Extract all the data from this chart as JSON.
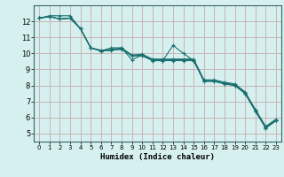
{
  "xlabel": "Humidex (Indice chaleur)",
  "background_color": "#d6f0ef",
  "grid_color": "#c8b4b4",
  "line_color": "#1a7070",
  "xlim": [
    -0.5,
    23.5
  ],
  "ylim": [
    4.5,
    13.0
  ],
  "x_ticks": [
    0,
    1,
    2,
    3,
    4,
    5,
    6,
    7,
    8,
    9,
    10,
    11,
    12,
    13,
    14,
    15,
    16,
    17,
    18,
    19,
    20,
    21,
    22,
    23
  ],
  "y_ticks": [
    5,
    6,
    7,
    8,
    9,
    10,
    11,
    12
  ],
  "series": [
    [
      12.2,
      12.35,
      12.35,
      12.35,
      11.55,
      10.35,
      10.15,
      10.35,
      10.35,
      9.6,
      9.9,
      9.55,
      9.55,
      10.5,
      10.0,
      9.55,
      8.3,
      8.3,
      8.1,
      8.0,
      7.5,
      6.4,
      5.35,
      5.8
    ],
    [
      12.2,
      12.3,
      12.15,
      12.2,
      11.55,
      10.35,
      10.15,
      10.2,
      10.25,
      9.85,
      9.85,
      9.55,
      9.55,
      9.55,
      9.55,
      9.55,
      8.25,
      8.25,
      8.1,
      8.0,
      7.5,
      6.4,
      5.35,
      5.8
    ],
    [
      12.2,
      12.3,
      12.15,
      12.2,
      11.55,
      10.35,
      10.15,
      10.2,
      10.3,
      9.85,
      9.9,
      9.6,
      9.6,
      9.6,
      9.6,
      9.6,
      8.3,
      8.3,
      8.15,
      8.05,
      7.55,
      6.45,
      5.4,
      5.85
    ],
    [
      12.2,
      12.3,
      12.15,
      12.2,
      11.55,
      10.35,
      10.2,
      10.25,
      10.35,
      9.9,
      9.95,
      9.65,
      9.65,
      9.65,
      9.65,
      9.65,
      8.35,
      8.35,
      8.2,
      8.1,
      7.6,
      6.5,
      5.45,
      5.9
    ]
  ],
  "xlabel_fontsize": 6.5,
  "tick_fontsize_x": 5,
  "tick_fontsize_y": 6
}
